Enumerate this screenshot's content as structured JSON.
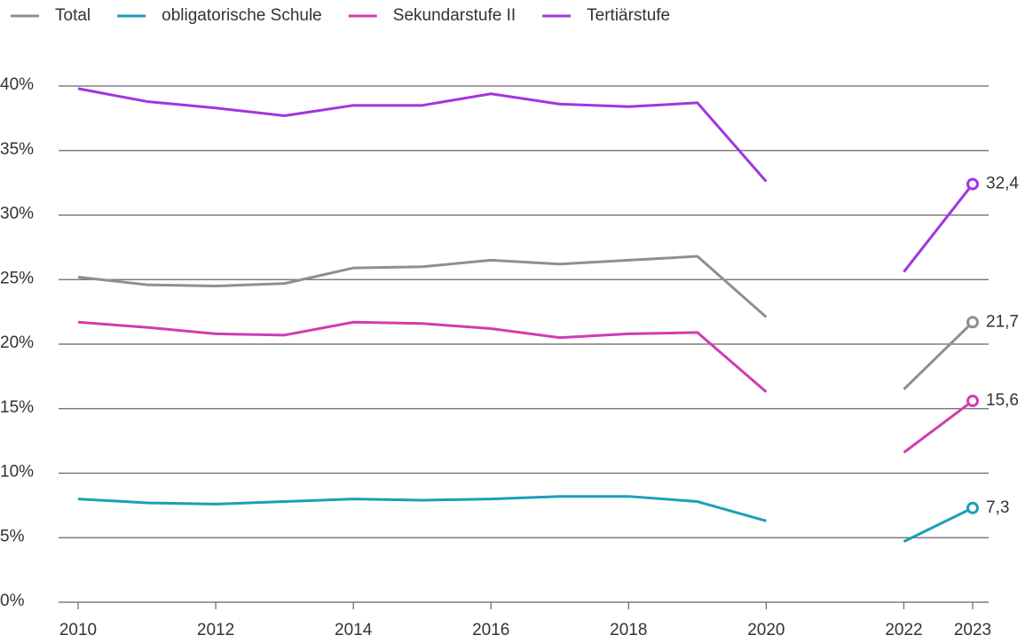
{
  "chart_data": {
    "type": "line",
    "x": [
      2010,
      2011,
      2012,
      2013,
      2014,
      2015,
      2016,
      2017,
      2018,
      2019,
      2020,
      2021,
      2022,
      2023
    ],
    "xlim": [
      2010,
      2023
    ],
    "xticks": [
      2010,
      2012,
      2014,
      2016,
      2018,
      2020,
      2022,
      2023
    ],
    "ylim": [
      0,
      40
    ],
    "yticks": [
      {
        "value": 0,
        "label": "0%"
      },
      {
        "value": 5,
        "label": "5%"
      },
      {
        "value": 10,
        "label": "10%"
      },
      {
        "value": 15,
        "label": "15%"
      },
      {
        "value": 20,
        "label": "20%"
      },
      {
        "value": 25,
        "label": "25%"
      },
      {
        "value": 30,
        "label": "30%"
      },
      {
        "value": 35,
        "label": "35%"
      },
      {
        "value": 40,
        "label": "40%"
      }
    ],
    "grid": true,
    "legend": "top-left",
    "series": [
      {
        "name": "Total",
        "color": "#8f8f8f",
        "values": [
          25.2,
          24.6,
          24.5,
          24.7,
          25.9,
          26.0,
          26.5,
          26.2,
          26.5,
          26.8,
          22.1,
          null,
          16.5,
          21.7
        ],
        "value_labels": [
          null,
          null,
          null,
          null,
          null,
          null,
          null,
          null,
          null,
          null,
          null,
          null,
          null,
          "21,7"
        ]
      },
      {
        "name": "obligatorische Schule",
        "color": "#1a9fb8",
        "values": [
          8.0,
          7.7,
          7.6,
          7.8,
          8.0,
          7.9,
          8.0,
          8.2,
          8.2,
          7.8,
          6.3,
          null,
          4.7,
          7.3
        ],
        "value_labels": [
          null,
          null,
          null,
          null,
          null,
          null,
          null,
          null,
          null,
          null,
          null,
          null,
          null,
          "7,3"
        ]
      },
      {
        "name": "Sekundarstufe II",
        "color": "#d23bb0",
        "values": [
          21.7,
          21.3,
          20.8,
          20.7,
          21.7,
          21.6,
          21.2,
          20.5,
          20.8,
          20.9,
          16.3,
          null,
          11.6,
          15.6
        ],
        "value_labels": [
          null,
          null,
          null,
          null,
          null,
          null,
          null,
          null,
          null,
          null,
          null,
          null,
          null,
          "15,6"
        ]
      },
      {
        "name": "Tertiärstufe",
        "color": "#a235df",
        "values": [
          39.8,
          38.8,
          38.3,
          37.7,
          38.5,
          38.5,
          39.4,
          38.6,
          38.4,
          38.7,
          32.6,
          null,
          25.6,
          32.4
        ],
        "value_labels": [
          null,
          null,
          null,
          null,
          null,
          null,
          null,
          null,
          null,
          null,
          null,
          null,
          null,
          "32,4"
        ]
      }
    ]
  }
}
